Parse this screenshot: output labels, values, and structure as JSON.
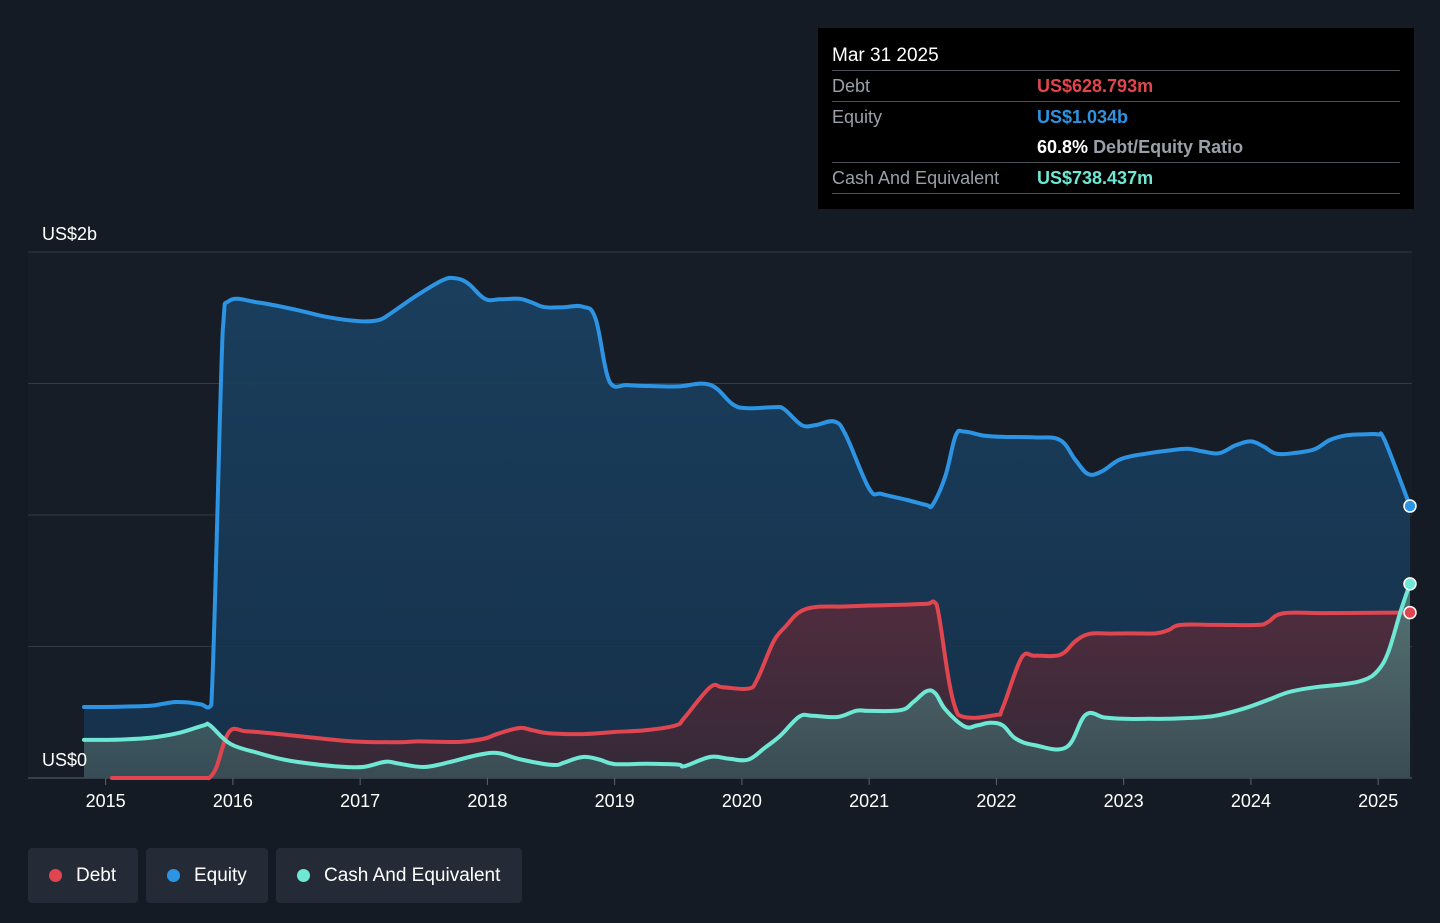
{
  "tooltip": {
    "date": "Mar 31 2025",
    "debt_label": "Debt",
    "debt_value": "US$628.793m",
    "equity_label": "Equity",
    "equity_value": "US$1.034b",
    "ratio_value": "60.8%",
    "ratio_label": "Debt/Equity Ratio",
    "cash_label": "Cash And Equivalent",
    "cash_value": "US$738.437m"
  },
  "legend": {
    "debt": "Debt",
    "equity": "Equity",
    "cash": "Cash And Equivalent"
  },
  "colors": {
    "debt": "#e0464f",
    "equity": "#2d94e3",
    "cash": "#6ee8d4",
    "background": "#151b24",
    "tooltip_bg": "#000000"
  },
  "chart_data": {
    "type": "area",
    "title": "",
    "xlabel": "",
    "ylabel": "",
    "ylim": [
      0,
      2000
    ],
    "y_unit": "US$ millions",
    "y_tick_labels": [
      {
        "value": 2000,
        "label": "US$2b"
      },
      {
        "value": 0,
        "label": "US$0"
      }
    ],
    "gridlines": [
      0,
      500,
      1000,
      1500,
      2000
    ],
    "xlim": [
      2014.83,
      2025.25
    ],
    "x_ticks": [
      "2015",
      "2016",
      "2017",
      "2018",
      "2019",
      "2020",
      "2021",
      "2022",
      "2023",
      "2024",
      "2025"
    ],
    "legend_position": "bottom-left",
    "series": [
      {
        "name": "Equity",
        "key": "equity",
        "points": [
          [
            2014.83,
            270
          ],
          [
            2015.1,
            271
          ],
          [
            2015.35,
            275
          ],
          [
            2015.45,
            282
          ],
          [
            2015.55,
            289
          ],
          [
            2015.65,
            287
          ],
          [
            2015.75,
            280
          ],
          [
            2015.83,
            278
          ],
          [
            2015.92,
            1700
          ],
          [
            2015.97,
            1814
          ],
          [
            2016.2,
            1808
          ],
          [
            2016.5,
            1780
          ],
          [
            2016.75,
            1752
          ],
          [
            2017.0,
            1737
          ],
          [
            2017.15,
            1742
          ],
          [
            2017.25,
            1770
          ],
          [
            2017.45,
            1836
          ],
          [
            2017.65,
            1893
          ],
          [
            2017.75,
            1900
          ],
          [
            2017.85,
            1880
          ],
          [
            2017.98,
            1822
          ],
          [
            2018.1,
            1820
          ],
          [
            2018.25,
            1822
          ],
          [
            2018.35,
            1808
          ],
          [
            2018.45,
            1790
          ],
          [
            2018.6,
            1790
          ],
          [
            2018.75,
            1792
          ],
          [
            2018.85,
            1746
          ],
          [
            2018.96,
            1506
          ],
          [
            2019.1,
            1494
          ],
          [
            2019.3,
            1490
          ],
          [
            2019.5,
            1489
          ],
          [
            2019.75,
            1495
          ],
          [
            2019.93,
            1420
          ],
          [
            2020.05,
            1406
          ],
          [
            2020.25,
            1410
          ],
          [
            2020.33,
            1403
          ],
          [
            2020.47,
            1342
          ],
          [
            2020.58,
            1342
          ],
          [
            2020.73,
            1355
          ],
          [
            2020.82,
            1300
          ],
          [
            2021.0,
            1100
          ],
          [
            2021.1,
            1080
          ],
          [
            2021.3,
            1057
          ],
          [
            2021.45,
            1038
          ],
          [
            2021.5,
            1040
          ],
          [
            2021.6,
            1150
          ],
          [
            2021.68,
            1302
          ],
          [
            2021.75,
            1317
          ],
          [
            2021.9,
            1302
          ],
          [
            2022.05,
            1297
          ],
          [
            2022.3,
            1295
          ],
          [
            2022.5,
            1285
          ],
          [
            2022.62,
            1210
          ],
          [
            2022.72,
            1156
          ],
          [
            2022.83,
            1166
          ],
          [
            2022.98,
            1213
          ],
          [
            2023.2,
            1235
          ],
          [
            2023.35,
            1245
          ],
          [
            2023.5,
            1252
          ],
          [
            2023.62,
            1242
          ],
          [
            2023.75,
            1235
          ],
          [
            2023.88,
            1265
          ],
          [
            2024.0,
            1280
          ],
          [
            2024.1,
            1260
          ],
          [
            2024.2,
            1233
          ],
          [
            2024.35,
            1236
          ],
          [
            2024.5,
            1250
          ],
          [
            2024.62,
            1285
          ],
          [
            2024.75,
            1303
          ],
          [
            2024.9,
            1307
          ],
          [
            2025.0,
            1306
          ],
          [
            2025.05,
            1286
          ],
          [
            2025.25,
            1034
          ]
        ]
      },
      {
        "name": "Debt",
        "key": "debt",
        "points": [
          [
            2015.05,
            0
          ],
          [
            2015.4,
            0
          ],
          [
            2015.75,
            0
          ],
          [
            2015.8,
            0
          ],
          [
            2015.82,
            3
          ],
          [
            2015.87,
            40
          ],
          [
            2015.97,
            175
          ],
          [
            2016.1,
            178
          ],
          [
            2016.3,
            170
          ],
          [
            2016.6,
            155
          ],
          [
            2016.8,
            145
          ],
          [
            2017.0,
            138
          ],
          [
            2017.3,
            136
          ],
          [
            2017.45,
            139
          ],
          [
            2017.6,
            138
          ],
          [
            2017.8,
            138
          ],
          [
            2017.98,
            150
          ],
          [
            2018.08,
            168
          ],
          [
            2018.25,
            190
          ],
          [
            2018.35,
            182
          ],
          [
            2018.48,
            170
          ],
          [
            2018.75,
            167
          ],
          [
            2019.0,
            175
          ],
          [
            2019.25,
            182
          ],
          [
            2019.48,
            200
          ],
          [
            2019.55,
            230
          ],
          [
            2019.75,
            345
          ],
          [
            2019.85,
            345
          ],
          [
            2020.05,
            340
          ],
          [
            2020.12,
            375
          ],
          [
            2020.25,
            520
          ],
          [
            2020.35,
            580
          ],
          [
            2020.45,
            630
          ],
          [
            2020.58,
            650
          ],
          [
            2020.8,
            652
          ],
          [
            2021.0,
            656
          ],
          [
            2021.2,
            658
          ],
          [
            2021.45,
            662
          ],
          [
            2021.53,
            660
          ],
          [
            2021.7,
            240
          ],
          [
            2022.0,
            240
          ],
          [
            2022.05,
            268
          ],
          [
            2022.2,
            460
          ],
          [
            2022.3,
            465
          ],
          [
            2022.5,
            468
          ],
          [
            2022.62,
            520
          ],
          [
            2022.73,
            548
          ],
          [
            2022.9,
            549
          ],
          [
            2023.05,
            550
          ],
          [
            2023.25,
            550
          ],
          [
            2023.35,
            562
          ],
          [
            2023.45,
            582
          ],
          [
            2023.75,
            582
          ],
          [
            2024.05,
            582
          ],
          [
            2024.13,
            592
          ],
          [
            2024.25,
            626
          ],
          [
            2024.55,
            627
          ],
          [
            2025.0,
            628
          ],
          [
            2025.25,
            629
          ]
        ]
      },
      {
        "name": "Cash And Equivalent",
        "key": "cash",
        "points": [
          [
            2014.83,
            145
          ],
          [
            2015.1,
            146
          ],
          [
            2015.35,
            153
          ],
          [
            2015.58,
            172
          ],
          [
            2015.77,
            200
          ],
          [
            2015.82,
            200
          ],
          [
            2015.98,
            130
          ],
          [
            2016.2,
            95
          ],
          [
            2016.4,
            70
          ],
          [
            2016.6,
            55
          ],
          [
            2016.8,
            45
          ],
          [
            2017.02,
            42
          ],
          [
            2017.2,
            62
          ],
          [
            2017.3,
            55
          ],
          [
            2017.5,
            42
          ],
          [
            2017.7,
            60
          ],
          [
            2017.92,
            87
          ],
          [
            2018.08,
            95
          ],
          [
            2018.25,
            72
          ],
          [
            2018.45,
            53
          ],
          [
            2018.55,
            50
          ],
          [
            2018.6,
            58
          ],
          [
            2018.75,
            80
          ],
          [
            2018.88,
            70
          ],
          [
            2019.0,
            53
          ],
          [
            2019.25,
            54
          ],
          [
            2019.5,
            51
          ],
          [
            2019.55,
            45
          ],
          [
            2019.75,
            80
          ],
          [
            2019.9,
            73
          ],
          [
            2020.05,
            70
          ],
          [
            2020.18,
            115
          ],
          [
            2020.3,
            160
          ],
          [
            2020.45,
            233
          ],
          [
            2020.55,
            237
          ],
          [
            2020.75,
            232
          ],
          [
            2020.9,
            256
          ],
          [
            2021.0,
            255
          ],
          [
            2021.25,
            258
          ],
          [
            2021.35,
            290
          ],
          [
            2021.45,
            330
          ],
          [
            2021.52,
            322
          ],
          [
            2021.6,
            260
          ],
          [
            2021.75,
            196
          ],
          [
            2021.85,
            200
          ],
          [
            2021.95,
            210
          ],
          [
            2022.05,
            200
          ],
          [
            2022.15,
            150
          ],
          [
            2022.3,
            125
          ],
          [
            2022.55,
            117
          ],
          [
            2022.7,
            240
          ],
          [
            2022.85,
            230
          ],
          [
            2023.0,
            225
          ],
          [
            2023.2,
            225
          ],
          [
            2023.4,
            226
          ],
          [
            2023.7,
            235
          ],
          [
            2023.95,
            265
          ],
          [
            2024.15,
            300
          ],
          [
            2024.3,
            327
          ],
          [
            2024.5,
            345
          ],
          [
            2024.75,
            358
          ],
          [
            2024.9,
            375
          ],
          [
            2025.0,
            410
          ],
          [
            2025.08,
            480
          ],
          [
            2025.18,
            640
          ],
          [
            2025.25,
            738
          ]
        ]
      }
    ]
  }
}
